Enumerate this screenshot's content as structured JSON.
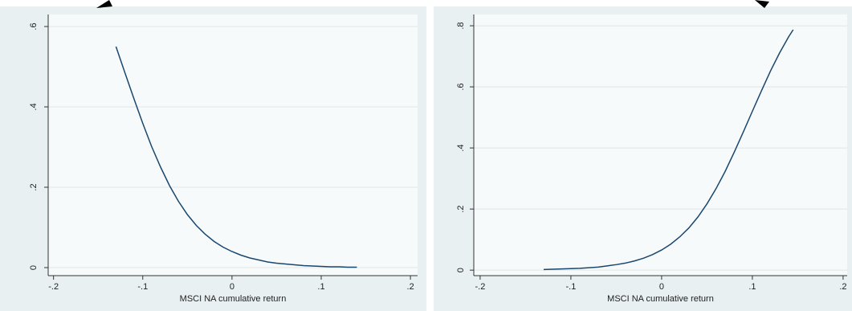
{
  "chart_data": [
    {
      "type": "line",
      "xlabel": "MSCI NA cumulative return",
      "x": [
        -0.13,
        -0.12,
        -0.11,
        -0.1,
        -0.09,
        -0.08,
        -0.07,
        -0.06,
        -0.05,
        -0.04,
        -0.03,
        -0.02,
        -0.01,
        0,
        0.01,
        0.02,
        0.03,
        0.04,
        0.05,
        0.06,
        0.07,
        0.08,
        0.09,
        0.1,
        0.11,
        0.12,
        0.13,
        0.14
      ],
      "values": [
        0.55,
        0.485,
        0.421,
        0.359,
        0.301,
        0.25,
        0.204,
        0.165,
        0.132,
        0.105,
        0.083,
        0.065,
        0.051,
        0.04,
        0.031,
        0.024,
        0.019,
        0.014,
        0.011,
        0.009,
        0.007,
        0.005,
        0.004,
        0.003,
        0.002,
        0.002,
        0.001,
        0.001
      ],
      "color": "#1a476f",
      "xlim": [
        -0.206,
        0.208
      ],
      "ylim": [
        -0.02,
        0.63
      ],
      "xticks": [
        {
          "value": -0.2,
          "label": "-.2"
        },
        {
          "value": -0.1,
          "label": "-.1"
        },
        0,
        {
          "value": 0.1,
          "label": ".1"
        },
        {
          "value": 0.2,
          "label": ".2"
        }
      ],
      "yticks": [
        0,
        {
          "value": 0.2,
          "label": ".2"
        },
        {
          "value": 0.4,
          "label": ".4"
        },
        {
          "value": 0.6,
          "label": ".6"
        }
      ],
      "grid": true
    },
    {
      "type": "line",
      "xlabel": "MSCI NA cumulative return",
      "x": [
        -0.13,
        -0.12,
        -0.11,
        -0.1,
        -0.09,
        -0.08,
        -0.07,
        -0.06,
        -0.05,
        -0.04,
        -0.03,
        -0.02,
        -0.01,
        0,
        0.01,
        0.02,
        0.03,
        0.04,
        0.05,
        0.06,
        0.07,
        0.08,
        0.09,
        0.1,
        0.11,
        0.12,
        0.13,
        0.14,
        0.145
      ],
      "values": [
        0.002,
        0.003,
        0.004,
        0.005,
        0.006,
        0.008,
        0.01,
        0.014,
        0.018,
        0.023,
        0.03,
        0.039,
        0.051,
        0.066,
        0.085,
        0.109,
        0.138,
        0.174,
        0.217,
        0.267,
        0.323,
        0.386,
        0.452,
        0.52,
        0.587,
        0.652,
        0.711,
        0.764,
        0.787
      ],
      "color": "#1a476f",
      "xlim": [
        -0.207,
        0.2045
      ],
      "ylim": [
        -0.018,
        0.837
      ],
      "xticks": [
        {
          "value": -0.2,
          "label": "-.2"
        },
        {
          "value": -0.1,
          "label": "-.1"
        },
        0,
        {
          "value": 0.1,
          "label": ".1"
        },
        {
          "value": 0.2,
          "label": ".2"
        }
      ],
      "yticks": [
        0,
        {
          "value": 0.2,
          "label": ".2"
        },
        {
          "value": 0.4,
          "label": ".4"
        },
        {
          "value": 0.6,
          "label": ".6"
        },
        {
          "value": 0.8,
          "label": ".8"
        }
      ],
      "grid": true
    }
  ]
}
